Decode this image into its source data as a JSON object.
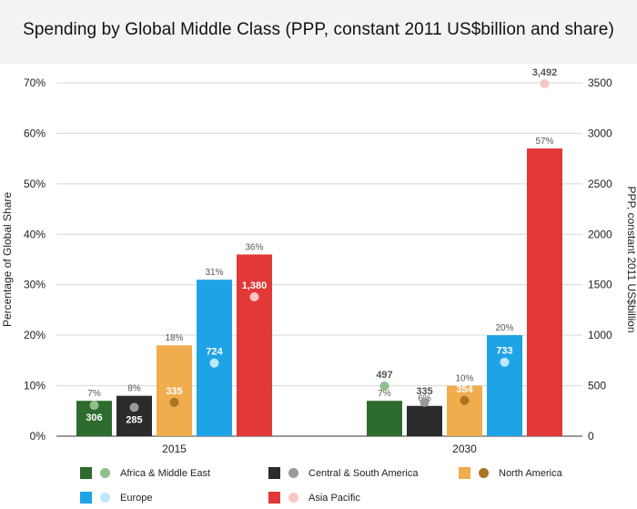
{
  "title": "Spending by Global Middle Class (PPP, constant 2011 US$billion and share)",
  "chart_data": {
    "type": "bar",
    "title": "Spending by Global Middle Class (PPP, constant 2011 US$billion and share)",
    "ylabel": "Percentage of Global Share",
    "y2label": "PPP, constant 2011 US$billion",
    "ylim": [
      0,
      70
    ],
    "y2lim": [
      0,
      3500
    ],
    "yticks": [
      "0%",
      "10%",
      "20%",
      "30%",
      "40%",
      "50%",
      "60%",
      "70%"
    ],
    "y2ticks": [
      "0",
      "500",
      "1000",
      "1500",
      "2000",
      "2500",
      "3000",
      "3500"
    ],
    "categories": [
      "2015",
      "2030"
    ],
    "grid": true,
    "legend_position": "bottom",
    "series": [
      {
        "name": "Africa & Middle East",
        "color": "#2e6b2e",
        "dot_color": "#8fbf8f",
        "share": [
          7,
          7
        ],
        "share_labels": [
          "7%",
          "7%"
        ],
        "spend": [
          306,
          497
        ],
        "spend_labels": [
          "306",
          "497"
        ]
      },
      {
        "name": "Central & South America",
        "color": "#2b2b2b",
        "dot_color": "#999999",
        "share": [
          8,
          6
        ],
        "share_labels": [
          "8%",
          "6%"
        ],
        "spend": [
          285,
          335
        ],
        "spend_labels": [
          "285",
          "335"
        ]
      },
      {
        "name": "North America",
        "color": "#f0ad4e",
        "dot_color": "#a87520",
        "share": [
          18,
          10
        ],
        "share_labels": [
          "18%",
          "10%"
        ],
        "spend": [
          335,
          354
        ],
        "spend_labels": [
          "335",
          "354"
        ]
      },
      {
        "name": "Europe",
        "color": "#1ea3e6",
        "dot_color": "#bde8fb",
        "share": [
          31,
          20
        ],
        "share_labels": [
          "31%",
          "20%"
        ],
        "spend": [
          724,
          733
        ],
        "spend_labels": [
          "724",
          "733"
        ]
      },
      {
        "name": "Asia Pacific",
        "color": "#e23838",
        "dot_color": "#f7c6c6",
        "share": [
          36,
          57
        ],
        "share_labels": [
          "36%",
          "57%"
        ],
        "spend": [
          1380,
          3492
        ],
        "spend_labels": [
          "1,380",
          "3,492"
        ]
      }
    ]
  }
}
